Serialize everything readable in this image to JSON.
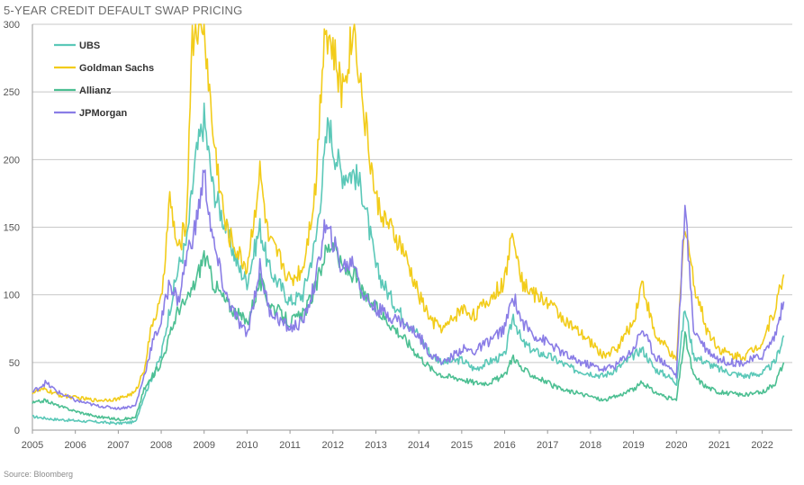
{
  "chart_data": {
    "type": "line",
    "title": "5-YEAR CREDIT DEFAULT SWAP PRICING",
    "source": "Source: Bloomberg",
    "xlabel": "",
    "ylabel": "",
    "ylim": [
      0,
      300
    ],
    "xlim": [
      2005.0,
      2022.7
    ],
    "y_ticks": [
      "0",
      "50",
      "100",
      "150",
      "200",
      "250",
      "300"
    ],
    "x_ticks": [
      "2005",
      "2006",
      "2007",
      "2008",
      "2009",
      "2010",
      "2011",
      "2012",
      "2013",
      "2014",
      "2015",
      "2016",
      "2017",
      "2018",
      "2019",
      "2020",
      "2021",
      "2022"
    ],
    "grid": "horizontal",
    "legend_position": "top-left",
    "series": [
      {
        "name": "UBS",
        "color": "#5bc8b8",
        "points": [
          [
            2005.0,
            10
          ],
          [
            2005.5,
            8
          ],
          [
            2006.0,
            7
          ],
          [
            2006.5,
            6
          ],
          [
            2007.0,
            5
          ],
          [
            2007.4,
            6
          ],
          [
            2007.6,
            25
          ],
          [
            2007.8,
            40
          ],
          [
            2008.0,
            55
          ],
          [
            2008.2,
            90
          ],
          [
            2008.4,
            120
          ],
          [
            2008.6,
            140
          ],
          [
            2008.8,
            200
          ],
          [
            2009.0,
            230
          ],
          [
            2009.2,
            180
          ],
          [
            2009.5,
            150
          ],
          [
            2009.8,
            120
          ],
          [
            2010.0,
            110
          ],
          [
            2010.3,
            150
          ],
          [
            2010.5,
            120
          ],
          [
            2010.8,
            105
          ],
          [
            2011.0,
            95
          ],
          [
            2011.3,
            100
          ],
          [
            2011.6,
            140
          ],
          [
            2011.8,
            200
          ],
          [
            2011.9,
            230
          ],
          [
            2012.0,
            210
          ],
          [
            2012.2,
            190
          ],
          [
            2012.5,
            190
          ],
          [
            2012.7,
            175
          ],
          [
            2013.0,
            120
          ],
          [
            2013.3,
            100
          ],
          [
            2013.6,
            85
          ],
          [
            2014.0,
            70
          ],
          [
            2014.3,
            55
          ],
          [
            2014.6,
            50
          ],
          [
            2015.0,
            52
          ],
          [
            2015.3,
            45
          ],
          [
            2015.6,
            50
          ],
          [
            2016.0,
            55
          ],
          [
            2016.2,
            85
          ],
          [
            2016.4,
            65
          ],
          [
            2016.7,
            58
          ],
          [
            2017.0,
            55
          ],
          [
            2017.3,
            50
          ],
          [
            2017.6,
            45
          ],
          [
            2018.0,
            42
          ],
          [
            2018.3,
            40
          ],
          [
            2018.6,
            45
          ],
          [
            2019.0,
            55
          ],
          [
            2019.2,
            60
          ],
          [
            2019.5,
            45
          ],
          [
            2019.8,
            40
          ],
          [
            2020.0,
            35
          ],
          [
            2020.2,
            90
          ],
          [
            2020.4,
            55
          ],
          [
            2020.7,
            50
          ],
          [
            2021.0,
            45
          ],
          [
            2021.3,
            42
          ],
          [
            2021.6,
            40
          ],
          [
            2022.0,
            42
          ],
          [
            2022.3,
            50
          ],
          [
            2022.5,
            70
          ]
        ]
      },
      {
        "name": "Goldman Sachs",
        "color": "#f2cc1a",
        "points": [
          [
            2005.0,
            28
          ],
          [
            2005.3,
            30
          ],
          [
            2005.6,
            26
          ],
          [
            2006.0,
            24
          ],
          [
            2006.5,
            22
          ],
          [
            2007.0,
            23
          ],
          [
            2007.4,
            28
          ],
          [
            2007.6,
            45
          ],
          [
            2007.8,
            80
          ],
          [
            2008.0,
            95
          ],
          [
            2008.2,
            170
          ],
          [
            2008.4,
            130
          ],
          [
            2008.6,
            160
          ],
          [
            2008.7,
            280
          ],
          [
            2008.8,
            300
          ],
          [
            2009.0,
            300
          ],
          [
            2009.2,
            220
          ],
          [
            2009.5,
            150
          ],
          [
            2009.8,
            130
          ],
          [
            2010.0,
            120
          ],
          [
            2010.3,
            190
          ],
          [
            2010.5,
            140
          ],
          [
            2010.8,
            125
          ],
          [
            2011.0,
            110
          ],
          [
            2011.3,
            120
          ],
          [
            2011.6,
            180
          ],
          [
            2011.8,
            300
          ],
          [
            2012.0,
            280
          ],
          [
            2012.2,
            250
          ],
          [
            2012.5,
            300
          ],
          [
            2012.7,
            240
          ],
          [
            2013.0,
            170
          ],
          [
            2013.3,
            150
          ],
          [
            2013.6,
            135
          ],
          [
            2014.0,
            100
          ],
          [
            2014.3,
            80
          ],
          [
            2014.6,
            75
          ],
          [
            2015.0,
            90
          ],
          [
            2015.3,
            85
          ],
          [
            2015.6,
            95
          ],
          [
            2016.0,
            110
          ],
          [
            2016.2,
            150
          ],
          [
            2016.4,
            110
          ],
          [
            2016.7,
            100
          ],
          [
            2017.0,
            95
          ],
          [
            2017.3,
            85
          ],
          [
            2017.6,
            75
          ],
          [
            2018.0,
            65
          ],
          [
            2018.3,
            55
          ],
          [
            2018.6,
            60
          ],
          [
            2019.0,
            80
          ],
          [
            2019.2,
            110
          ],
          [
            2019.5,
            70
          ],
          [
            2019.8,
            60
          ],
          [
            2020.0,
            50
          ],
          [
            2020.2,
            155
          ],
          [
            2020.4,
            110
          ],
          [
            2020.7,
            75
          ],
          [
            2021.0,
            60
          ],
          [
            2021.3,
            55
          ],
          [
            2021.6,
            55
          ],
          [
            2022.0,
            65
          ],
          [
            2022.3,
            90
          ],
          [
            2022.5,
            115
          ]
        ]
      },
      {
        "name": "Allianz",
        "color": "#4cbf92",
        "points": [
          [
            2005.0,
            20
          ],
          [
            2005.3,
            22
          ],
          [
            2005.6,
            18
          ],
          [
            2006.0,
            14
          ],
          [
            2006.5,
            10
          ],
          [
            2007.0,
            8
          ],
          [
            2007.4,
            9
          ],
          [
            2007.6,
            30
          ],
          [
            2007.8,
            40
          ],
          [
            2008.0,
            50
          ],
          [
            2008.2,
            70
          ],
          [
            2008.4,
            90
          ],
          [
            2008.6,
            95
          ],
          [
            2008.8,
            110
          ],
          [
            2009.0,
            130
          ],
          [
            2009.2,
            110
          ],
          [
            2009.5,
            95
          ],
          [
            2009.8,
            85
          ],
          [
            2010.0,
            80
          ],
          [
            2010.3,
            110
          ],
          [
            2010.5,
            95
          ],
          [
            2010.8,
            85
          ],
          [
            2011.0,
            80
          ],
          [
            2011.3,
            85
          ],
          [
            2011.6,
            105
          ],
          [
            2011.8,
            130
          ],
          [
            2012.0,
            140
          ],
          [
            2012.2,
            120
          ],
          [
            2012.5,
            115
          ],
          [
            2012.7,
            100
          ],
          [
            2013.0,
            90
          ],
          [
            2013.3,
            80
          ],
          [
            2013.6,
            70
          ],
          [
            2014.0,
            55
          ],
          [
            2014.3,
            45
          ],
          [
            2014.6,
            40
          ],
          [
            2015.0,
            38
          ],
          [
            2015.3,
            35
          ],
          [
            2015.6,
            35
          ],
          [
            2016.0,
            40
          ],
          [
            2016.2,
            55
          ],
          [
            2016.4,
            45
          ],
          [
            2016.7,
            40
          ],
          [
            2017.0,
            35
          ],
          [
            2017.3,
            30
          ],
          [
            2017.6,
            28
          ],
          [
            2018.0,
            25
          ],
          [
            2018.3,
            22
          ],
          [
            2018.6,
            25
          ],
          [
            2019.0,
            30
          ],
          [
            2019.2,
            35
          ],
          [
            2019.5,
            28
          ],
          [
            2019.8,
            24
          ],
          [
            2020.0,
            22
          ],
          [
            2020.2,
            70
          ],
          [
            2020.4,
            40
          ],
          [
            2020.7,
            32
          ],
          [
            2021.0,
            28
          ],
          [
            2021.3,
            27
          ],
          [
            2021.6,
            26
          ],
          [
            2022.0,
            28
          ],
          [
            2022.3,
            35
          ],
          [
            2022.5,
            50
          ]
        ]
      },
      {
        "name": "JPMorgan",
        "color": "#8a7de6",
        "points": [
          [
            2005.0,
            28
          ],
          [
            2005.3,
            35
          ],
          [
            2005.6,
            28
          ],
          [
            2006.0,
            22
          ],
          [
            2006.5,
            18
          ],
          [
            2007.0,
            16
          ],
          [
            2007.4,
            18
          ],
          [
            2007.6,
            40
          ],
          [
            2007.8,
            65
          ],
          [
            2008.0,
            80
          ],
          [
            2008.2,
            110
          ],
          [
            2008.4,
            95
          ],
          [
            2008.6,
            130
          ],
          [
            2008.8,
            150
          ],
          [
            2009.0,
            190
          ],
          [
            2009.2,
            140
          ],
          [
            2009.5,
            100
          ],
          [
            2009.8,
            80
          ],
          [
            2010.0,
            70
          ],
          [
            2010.3,
            120
          ],
          [
            2010.5,
            90
          ],
          [
            2010.8,
            80
          ],
          [
            2011.0,
            75
          ],
          [
            2011.3,
            80
          ],
          [
            2011.6,
            110
          ],
          [
            2011.8,
            150
          ],
          [
            2012.0,
            140
          ],
          [
            2012.2,
            120
          ],
          [
            2012.5,
            125
          ],
          [
            2012.7,
            100
          ],
          [
            2013.0,
            90
          ],
          [
            2013.3,
            85
          ],
          [
            2013.6,
            80
          ],
          [
            2014.0,
            70
          ],
          [
            2014.3,
            55
          ],
          [
            2014.6,
            50
          ],
          [
            2015.0,
            60
          ],
          [
            2015.3,
            58
          ],
          [
            2015.6,
            65
          ],
          [
            2016.0,
            75
          ],
          [
            2016.2,
            100
          ],
          [
            2016.4,
            80
          ],
          [
            2016.7,
            70
          ],
          [
            2017.0,
            65
          ],
          [
            2017.3,
            58
          ],
          [
            2017.6,
            52
          ],
          [
            2018.0,
            48
          ],
          [
            2018.3,
            45
          ],
          [
            2018.6,
            48
          ],
          [
            2019.0,
            60
          ],
          [
            2019.2,
            75
          ],
          [
            2019.5,
            55
          ],
          [
            2019.8,
            48
          ],
          [
            2020.0,
            40
          ],
          [
            2020.2,
            165
          ],
          [
            2020.4,
            75
          ],
          [
            2020.7,
            60
          ],
          [
            2021.0,
            52
          ],
          [
            2021.3,
            50
          ],
          [
            2021.6,
            50
          ],
          [
            2022.0,
            55
          ],
          [
            2022.3,
            70
          ],
          [
            2022.5,
            95
          ]
        ]
      }
    ]
  }
}
